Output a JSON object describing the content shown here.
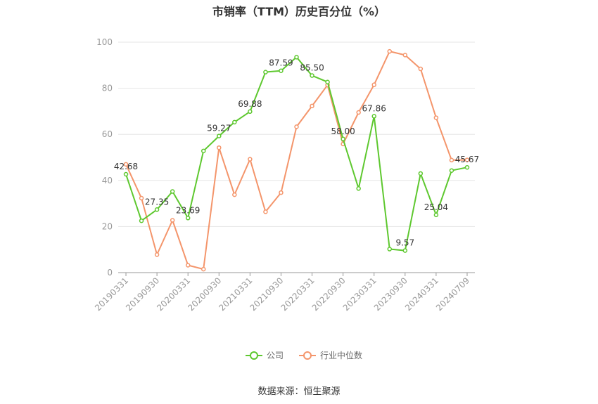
{
  "colors": {
    "company": "#5ec82f",
    "industry": "#f4956b",
    "axis": "#999999",
    "grid": "#e6e6e6",
    "label": "#333333"
  },
  "footer": {
    "source": "数据来源：恒生聚源"
  },
  "chart_data": {
    "type": "line",
    "title": "市销率（TTM）历史百分位（%）",
    "xlabel": "",
    "ylabel": "",
    "ylim": [
      0,
      100
    ],
    "yticks": [
      0,
      20,
      40,
      60,
      80,
      100
    ],
    "grid": true,
    "legend_position": "bottom",
    "x": [
      "20190331",
      "20190630",
      "20190930",
      "20191231",
      "20200331",
      "20200630",
      "20200930",
      "20201231",
      "20210331",
      "20210630",
      "20210930",
      "20211231",
      "20220331",
      "20220630",
      "20220930",
      "20221231",
      "20230331",
      "20230630",
      "20230930",
      "20231231",
      "20240331",
      "20240630",
      "20240709"
    ],
    "x_tick_labels": [
      "20190331",
      "20190930",
      "20200331",
      "20200930",
      "20210331",
      "20210930",
      "20220331",
      "20220930",
      "20230331",
      "20230930",
      "20240331",
      "20240709"
    ],
    "series": [
      {
        "name": "公司",
        "values": [
          42.68,
          22.5,
          27.35,
          35.2,
          23.69,
          52.8,
          59.27,
          65.3,
          69.88,
          87.0,
          87.59,
          93.5,
          85.5,
          82.7,
          58.0,
          36.5,
          67.86,
          10.2,
          9.57,
          43.0,
          25.04,
          44.3,
          45.67
        ],
        "labels": [
          "42.68",
          "",
          "27.35",
          "",
          "23.69",
          "",
          "59.27",
          "",
          "69.88",
          "",
          "87.59",
          "",
          "85.50",
          "",
          "58.00",
          "",
          "67.86",
          "",
          "9.57",
          "",
          "25.04",
          "",
          "45.67"
        ]
      },
      {
        "name": "行业中位数",
        "values": [
          47.0,
          32.3,
          7.8,
          22.7,
          3.2,
          1.5,
          54.2,
          33.8,
          49.2,
          26.4,
          34.7,
          63.3,
          72.3,
          81.4,
          55.8,
          69.5,
          81.5,
          96.0,
          94.4,
          88.4,
          67.2,
          48.8,
          48.9
        ]
      }
    ]
  }
}
